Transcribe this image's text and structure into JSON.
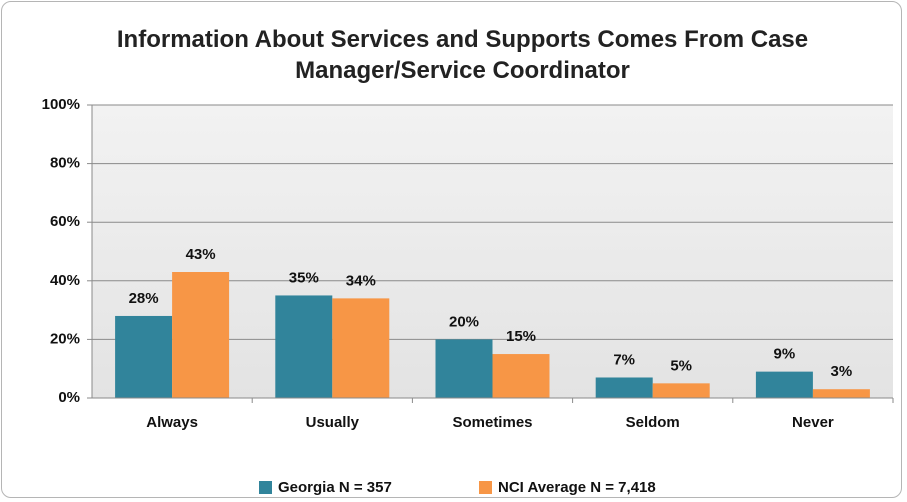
{
  "chart_data": {
    "type": "bar",
    "title": "Information About Services and Supports Comes From Case Manager/Service Coordinator",
    "categories": [
      "Always",
      "Usually",
      "Sometimes",
      "Seldom",
      "Never"
    ],
    "series": [
      {
        "name": "Georgia N = 357",
        "color": "#31849b",
        "values": [
          28,
          35,
          20,
          7,
          9
        ],
        "value_labels": [
          "28%",
          "35%",
          "20%",
          "7%",
          "9%"
        ]
      },
      {
        "name": "NCI Average N = 7,418",
        "color": "#f79646",
        "values": [
          43,
          34,
          15,
          5,
          3
        ],
        "value_labels": [
          "43%",
          "34%",
          "15%",
          "5%",
          "3%"
        ]
      }
    ],
    "ylim": [
      0,
      100
    ],
    "yticks": [
      {
        "value": 0,
        "label": "0%"
      },
      {
        "value": 20,
        "label": "20%"
      },
      {
        "value": 40,
        "label": "40%"
      },
      {
        "value": 60,
        "label": "60%"
      },
      {
        "value": 80,
        "label": "80%"
      },
      {
        "value": 100,
        "label": "100%"
      }
    ],
    "grid": true,
    "legend": "bottom"
  }
}
